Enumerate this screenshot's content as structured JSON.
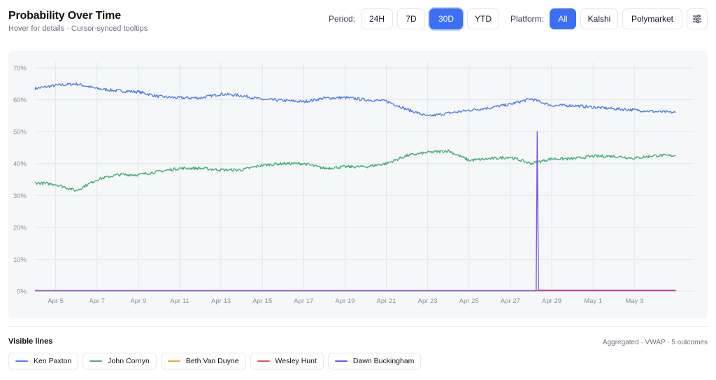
{
  "header": {
    "title": "Probability Over Time",
    "subtitle": "Hover for details · Cursor-synced tooltips"
  },
  "controls": {
    "period_label": "Period:",
    "periods": [
      "24H",
      "7D",
      "30D",
      "YTD"
    ],
    "active_period": "30D",
    "platform_label": "Platform:",
    "platforms": [
      "All",
      "Kalshi",
      "Polymarket"
    ],
    "active_platform": "All",
    "settings_icon": "sliders-icon"
  },
  "legend": {
    "title": "Visible lines",
    "note": "Aggregated · VWAP · 5 outcomes"
  },
  "colors": {
    "accent": "#3b6ff5",
    "ken_paxton": "#4f7ee8",
    "john_cornyn": "#3fae78",
    "beth_van_duyne": "#f0a43a",
    "wesley_hunt": "#e0525a",
    "dawn_buckingham": "#7b55e0",
    "grid": "#e3e5e9",
    "tick": "#8a9099"
  },
  "chart_data": {
    "type": "line",
    "xlabel": "",
    "ylabel": "",
    "x_start": "Apr 4",
    "x_end": "May 6",
    "xticks": [
      "Apr 5",
      "Apr 7",
      "Apr 9",
      "Apr 11",
      "Apr 13",
      "Apr 15",
      "Apr 17",
      "Apr 19",
      "Apr 21",
      "Apr 23",
      "Apr 25",
      "Apr 27",
      "Apr 29",
      "May 1",
      "May 3"
    ],
    "yticks": [
      "0%",
      "10%",
      "20%",
      "30%",
      "40%",
      "50%",
      "60%",
      "70%"
    ],
    "ylim": [
      0,
      70
    ],
    "grid": true,
    "series": [
      {
        "name": "Ken Paxton",
        "color": "#4f7ee8",
        "points": [
          [
            "Apr 4",
            63.5
          ],
          [
            "Apr 5",
            64.5
          ],
          [
            "Apr 6",
            65
          ],
          [
            "Apr 7",
            63.5
          ],
          [
            "Apr 8",
            62.8
          ],
          [
            "Apr 9",
            62.5
          ],
          [
            "Apr 10",
            61
          ],
          [
            "Apr 11",
            60.6
          ],
          [
            "Apr 12",
            60.6
          ],
          [
            "Apr 13",
            61.8
          ],
          [
            "Apr 14",
            61.3
          ],
          [
            "Apr 15",
            60.1
          ],
          [
            "Apr 16",
            59.8
          ],
          [
            "Apr 17",
            59.4
          ],
          [
            "Apr 18",
            60.5
          ],
          [
            "Apr 19",
            60.7
          ],
          [
            "Apr 20",
            60
          ],
          [
            "Apr 21",
            59.6
          ],
          [
            "Apr 22",
            57
          ],
          [
            "Apr 23",
            54.8
          ],
          [
            "Apr 24",
            55.8
          ],
          [
            "Apr 25",
            56.7
          ],
          [
            "Apr 26",
            57.5
          ],
          [
            "Apr 27",
            58.6
          ],
          [
            "Apr 28",
            60.3
          ],
          [
            "Apr 29",
            58.2
          ],
          [
            "Apr 30",
            58.2
          ],
          [
            "May 1",
            57.7
          ],
          [
            "May 2",
            57.2
          ],
          [
            "May 3",
            56.8
          ],
          [
            "May 4",
            56.3
          ],
          [
            "May 5",
            56
          ]
        ]
      },
      {
        "name": "John Cornyn",
        "color": "#3fae78",
        "points": [
          [
            "Apr 4",
            34
          ],
          [
            "Apr 5",
            33.5
          ],
          [
            "Apr 6",
            31.5
          ],
          [
            "Apr 7",
            35
          ],
          [
            "Apr 8",
            36.5
          ],
          [
            "Apr 9",
            36.5
          ],
          [
            "Apr 10",
            37.5
          ],
          [
            "Apr 11",
            38.5
          ],
          [
            "Apr 12",
            38.5
          ],
          [
            "Apr 13",
            38
          ],
          [
            "Apr 14",
            38
          ],
          [
            "Apr 15",
            39.5
          ],
          [
            "Apr 16",
            40
          ],
          [
            "Apr 17",
            40
          ],
          [
            "Apr 18",
            38.5
          ],
          [
            "Apr 19",
            39
          ],
          [
            "Apr 20",
            39
          ],
          [
            "Apr 21",
            40
          ],
          [
            "Apr 22",
            42.5
          ],
          [
            "Apr 23",
            43.5
          ],
          [
            "Apr 24",
            44
          ],
          [
            "Apr 25",
            41
          ],
          [
            "Apr 26",
            41.5
          ],
          [
            "Apr 27",
            42
          ],
          [
            "Apr 28",
            40
          ],
          [
            "Apr 29",
            41.5
          ],
          [
            "Apr 30",
            41.5
          ],
          [
            "May 1",
            42.3
          ],
          [
            "May 2",
            42.3
          ],
          [
            "May 3",
            41.7
          ],
          [
            "May 4",
            42.5
          ],
          [
            "May 5",
            42.5
          ]
        ]
      },
      {
        "name": "Beth Van Duyne",
        "color": "#f0a43a",
        "points": [
          [
            "Apr 4",
            0.2
          ],
          [
            "May 5",
            0.2
          ]
        ]
      },
      {
        "name": "Wesley Hunt",
        "color": "#e0525a",
        "points": [
          [
            "Apr 4",
            0.1
          ],
          [
            "May 5",
            0.1
          ]
        ]
      },
      {
        "name": "Dawn Buckingham",
        "color": "#7b55e0",
        "points": [
          [
            "Apr 4",
            0.1
          ],
          [
            "Apr 28",
            0.1
          ],
          [
            "Apr 28",
            50
          ],
          [
            "Apr 29",
            0.3
          ],
          [
            "May 5",
            0.3
          ]
        ]
      }
    ]
  }
}
